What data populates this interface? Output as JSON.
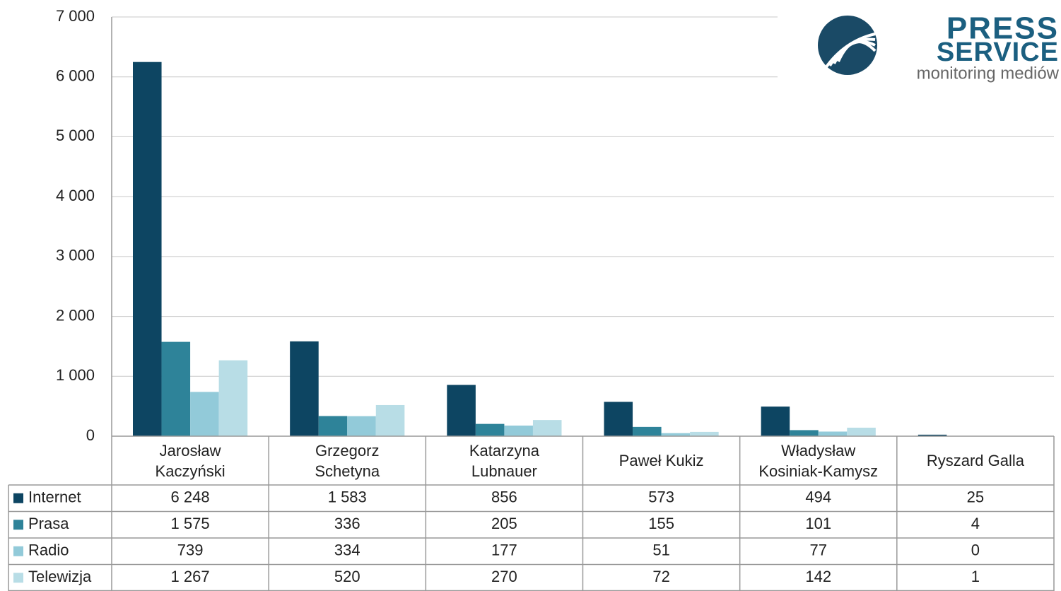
{
  "chart_data": {
    "type": "bar",
    "categories": [
      "Jarosław\nKaczyński",
      "Grzegorz\nSchetyna",
      "Katarzyna\nLubnauer",
      "Paweł Kukiz",
      "Władysław\nKosiniak-Kamysz",
      "Ryszard Galla"
    ],
    "series": [
      {
        "name": "Internet",
        "color": "#0d4562",
        "values": [
          6248,
          1583,
          856,
          573,
          494,
          25
        ],
        "value_labels": [
          "6 248",
          "1 583",
          "856",
          "573",
          "494",
          "25"
        ]
      },
      {
        "name": "Prasa",
        "color": "#2e8399",
        "values": [
          1575,
          336,
          205,
          155,
          101,
          4
        ],
        "value_labels": [
          "1 575",
          "336",
          "205",
          "155",
          "101",
          "4"
        ]
      },
      {
        "name": "Radio",
        "color": "#92cad9",
        "values": [
          739,
          334,
          177,
          51,
          77,
          0
        ],
        "value_labels": [
          "739",
          "334",
          "177",
          "51",
          "77",
          "0"
        ]
      },
      {
        "name": "Telewizja",
        "color": "#b8dde6",
        "values": [
          1267,
          520,
          270,
          72,
          142,
          1
        ],
        "value_labels": [
          "1 267",
          "520",
          "270",
          "72",
          "142",
          "1"
        ]
      }
    ],
    "ylim": [
      0,
      7000
    ],
    "yticks": [
      0,
      {
        "value": 1000,
        "label": "1 000"
      },
      {
        "value": 2000,
        "label": "2 000"
      },
      {
        "value": 3000,
        "label": "3 000"
      },
      {
        "value": 4000,
        "label": "4 000"
      },
      {
        "value": 5000,
        "label": "5 000"
      },
      {
        "value": 6000,
        "label": "6 000"
      },
      {
        "value": 7000,
        "label": "7 000"
      }
    ],
    "grid": true,
    "logo": {
      "line1": "PRESS",
      "line2": "SERVICE",
      "tagline": "monitoring mediów"
    }
  }
}
